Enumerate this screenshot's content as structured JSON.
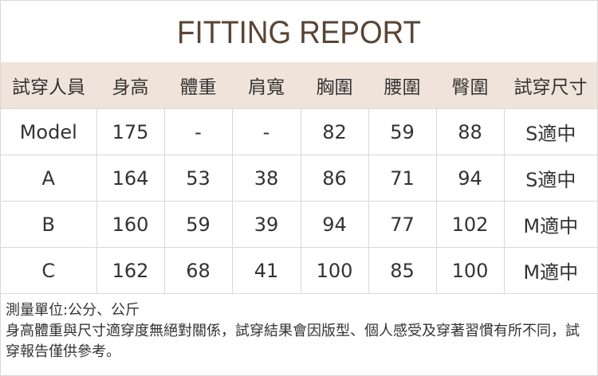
{
  "title": "FITTING REPORT",
  "table": {
    "headers": [
      "試穿人員",
      "身高",
      "體重",
      "肩寬",
      "胸圍",
      "腰圍",
      "臀圍",
      "試穿尺寸"
    ],
    "rows": [
      [
        "Model",
        "175",
        "-",
        "-",
        "82",
        "59",
        "88",
        "S適中"
      ],
      [
        "A",
        "164",
        "53",
        "38",
        "86",
        "71",
        "94",
        "S適中"
      ],
      [
        "B",
        "160",
        "59",
        "39",
        "94",
        "77",
        "102",
        "M適中"
      ],
      [
        "C",
        "162",
        "68",
        "41",
        "100",
        "85",
        "100",
        "M適中"
      ]
    ]
  },
  "notes": {
    "unit": "測量單位:公分、公斤",
    "disclaimer": "身高體重與尺寸適穿度無絕對關係，試穿結果會因版型、個人感受及穿著習慣有所不同，試穿報告僅供參考。"
  },
  "colors": {
    "title": "#5a4433",
    "header_bg": "#f0e4da",
    "border": "#d8d8d8"
  }
}
